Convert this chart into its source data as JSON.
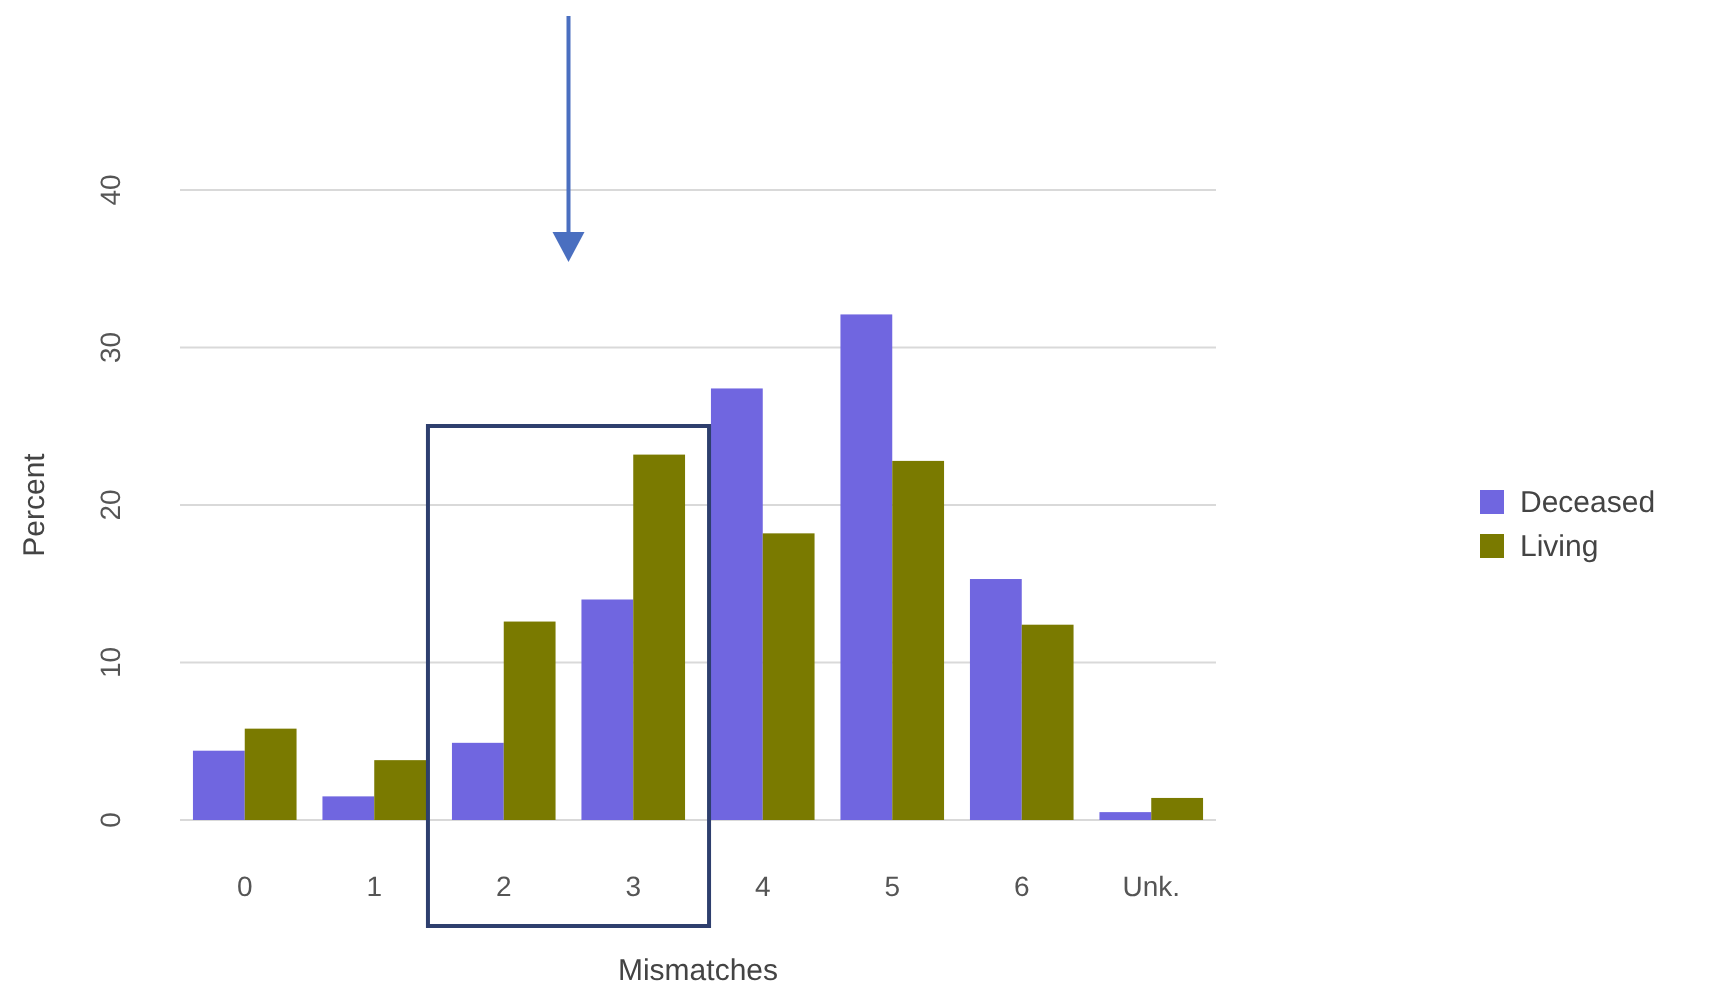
{
  "chart_data": {
    "type": "bar",
    "xlabel": "Mismatches",
    "ylabel": "Percent",
    "categories": [
      "0",
      "1",
      "2",
      "3",
      "4",
      "5",
      "6",
      "Unk."
    ],
    "series": [
      {
        "name": "Deceased",
        "color": "#7066e0",
        "values": [
          4.4,
          1.5,
          4.9,
          14,
          27.4,
          32.1,
          15.3,
          0.5
        ]
      },
      {
        "name": "Living",
        "color": "#7a7a00",
        "values": [
          5.8,
          3.8,
          12.6,
          23.2,
          18.2,
          22.8,
          12.4,
          1.4
        ]
      }
    ],
    "ylim": [
      0,
      40
    ],
    "yticks": [
      0,
      10,
      20,
      30,
      40
    ],
    "grid": "y",
    "legend": "right"
  }
}
